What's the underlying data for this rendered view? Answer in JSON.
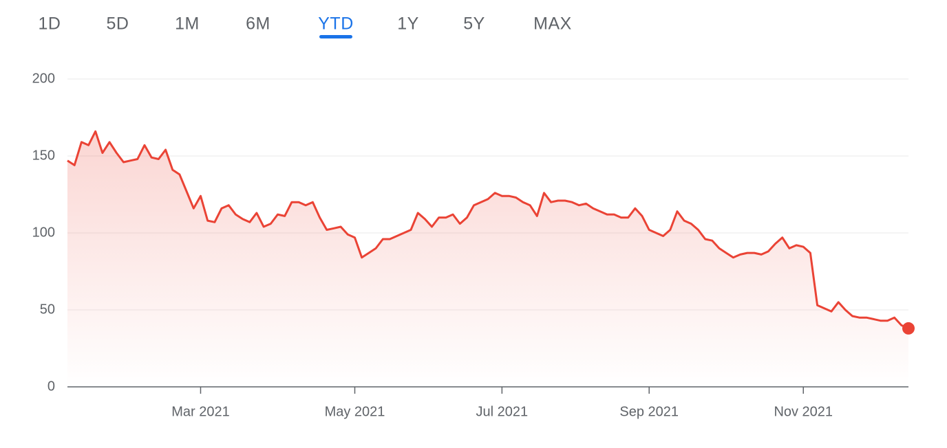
{
  "tabs": [
    {
      "label": "1D",
      "active": false
    },
    {
      "label": "5D",
      "active": false
    },
    {
      "label": "1M",
      "active": false
    },
    {
      "label": "6M",
      "active": false
    },
    {
      "label": "YTD",
      "active": true
    },
    {
      "label": "1Y",
      "active": false
    },
    {
      "label": "5Y",
      "active": false
    },
    {
      "label": "MAX",
      "active": false
    }
  ],
  "chart_data": {
    "type": "line",
    "color": "#ea4335",
    "grid": true,
    "ylim": [
      0,
      200
    ],
    "yticks": [
      0,
      50,
      100,
      150,
      200
    ],
    "categories": [
      null,
      null,
      null,
      null,
      null,
      null,
      null,
      null,
      null,
      null,
      null,
      null,
      null,
      null,
      null,
      null,
      null,
      null,
      null,
      "Mar 2021",
      null,
      null,
      null,
      null,
      null,
      null,
      null,
      null,
      null,
      null,
      null,
      null,
      null,
      null,
      null,
      null,
      null,
      null,
      null,
      null,
      null,
      "May 2021",
      null,
      null,
      null,
      null,
      null,
      null,
      null,
      null,
      null,
      null,
      null,
      null,
      null,
      null,
      null,
      null,
      null,
      null,
      null,
      null,
      "Jul 2021",
      null,
      null,
      null,
      null,
      null,
      null,
      null,
      null,
      null,
      null,
      null,
      null,
      null,
      null,
      null,
      null,
      null,
      null,
      null,
      null,
      "Sep 2021",
      null,
      null,
      null,
      null,
      null,
      null,
      null,
      null,
      null,
      null,
      null,
      null,
      null,
      null,
      null,
      null,
      null,
      null,
      null,
      null,
      null,
      "Nov 2021",
      null,
      null,
      null,
      null,
      null,
      null,
      null,
      null,
      null,
      null,
      null,
      null,
      null,
      null,
      null
    ],
    "values": [
      147,
      144,
      159,
      157,
      166,
      152,
      159,
      152,
      146,
      147,
      148,
      157,
      149,
      148,
      154,
      141,
      138,
      127,
      116,
      124,
      108,
      107,
      116,
      118,
      112,
      109,
      107,
      113,
      104,
      106,
      112,
      111,
      120,
      120,
      118,
      120,
      110,
      102,
      103,
      104,
      99,
      97,
      84,
      87,
      90,
      96,
      96,
      98,
      100,
      102,
      113,
      109,
      104,
      110,
      110,
      112,
      106,
      110,
      118,
      120,
      122,
      126,
      124,
      124,
      123,
      120,
      118,
      111,
      126,
      120,
      121,
      121,
      120,
      118,
      119,
      116,
      114,
      112,
      112,
      110,
      110,
      116,
      111,
      102,
      100,
      98,
      102,
      114,
      108,
      106,
      102,
      96,
      95,
      90,
      87,
      84,
      86,
      87,
      87,
      86,
      88,
      93,
      97,
      90,
      92,
      91,
      87,
      53,
      51,
      49,
      55,
      50,
      46,
      45,
      45,
      44,
      43,
      43,
      45,
      40,
      38
    ]
  }
}
